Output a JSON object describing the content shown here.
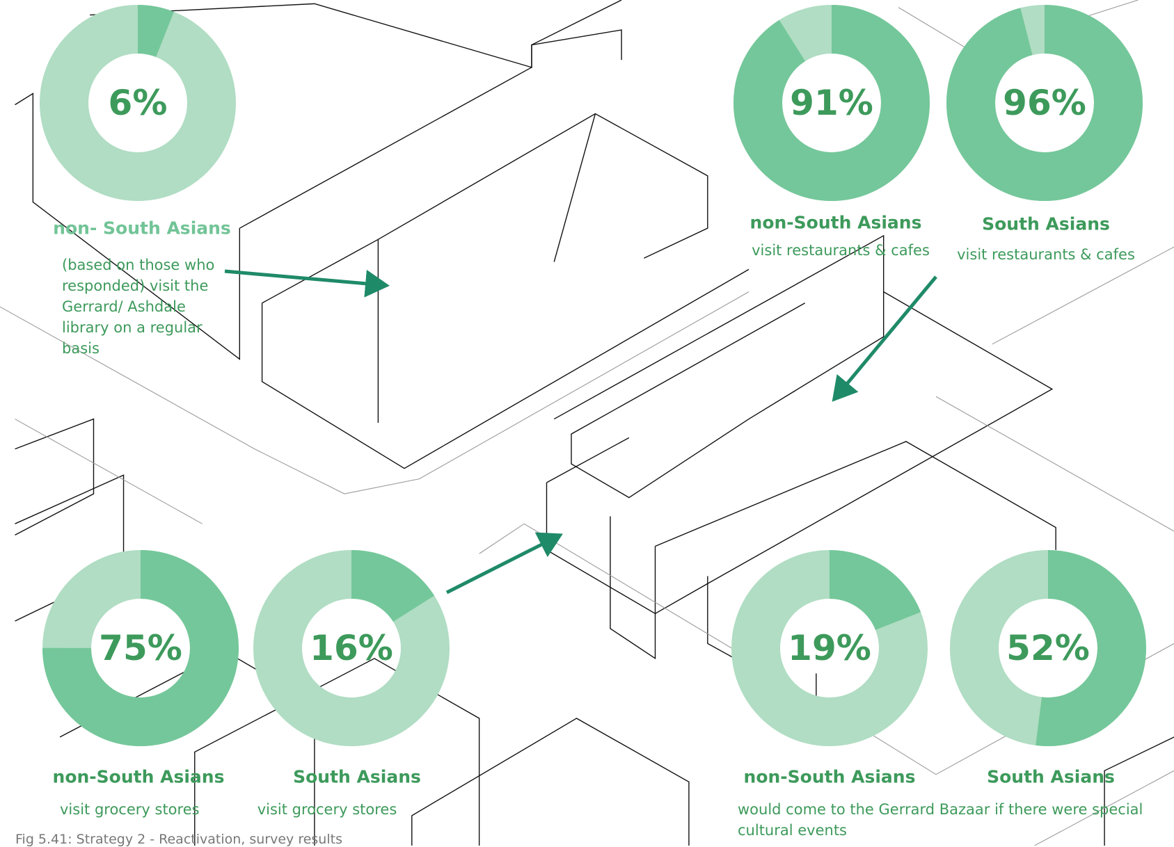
{
  "figure_caption": "Fig 5.41: Strategy 2 - Reactivation, survey results",
  "chart_data": [
    {
      "type": "donut",
      "values": [
        6
      ],
      "value_labels": [
        "6%"
      ],
      "group": "non- South Asians",
      "caption": "(based on those who responded) visit the Gerrard/ Ashdale library on a regular basis",
      "color": "#74c79a",
      "rest_color": "#b0ddc3"
    },
    {
      "type": "donut",
      "values": [
        91
      ],
      "value_labels": [
        "91%"
      ],
      "group": "non-South Asians",
      "caption": "visit restaurants & cafes",
      "color": "#74c79a",
      "rest_color": "#b0ddc3"
    },
    {
      "type": "donut",
      "values": [
        96
      ],
      "value_labels": [
        "96%"
      ],
      "group": "South Asians",
      "caption": "visit restaurants & cafes",
      "color": "#74c79a",
      "rest_color": "#b0ddc3"
    },
    {
      "type": "donut",
      "values": [
        75
      ],
      "value_labels": [
        "75%"
      ],
      "group": "non-South Asians",
      "caption": "visit grocery stores",
      "color": "#74c79a",
      "rest_color": "#b0ddc3"
    },
    {
      "type": "donut",
      "values": [
        16
      ],
      "value_labels": [
        "16%"
      ],
      "group": "South Asians",
      "caption": "visit grocery stores",
      "color": "#74c79a",
      "rest_color": "#b0ddc3"
    },
    {
      "type": "donut",
      "values": [
        19
      ],
      "value_labels": [
        "19%"
      ],
      "group": "non-South Asians",
      "caption": "would come to the Gerrard Bazaar if there were special cultural events",
      "color": "#74c79a",
      "rest_color": "#b0ddc3"
    },
    {
      "type": "donut",
      "values": [
        52
      ],
      "value_labels": [
        "52%"
      ],
      "group": "South Asians",
      "color": "#74c79a",
      "rest_color": "#b0ddc3"
    }
  ]
}
